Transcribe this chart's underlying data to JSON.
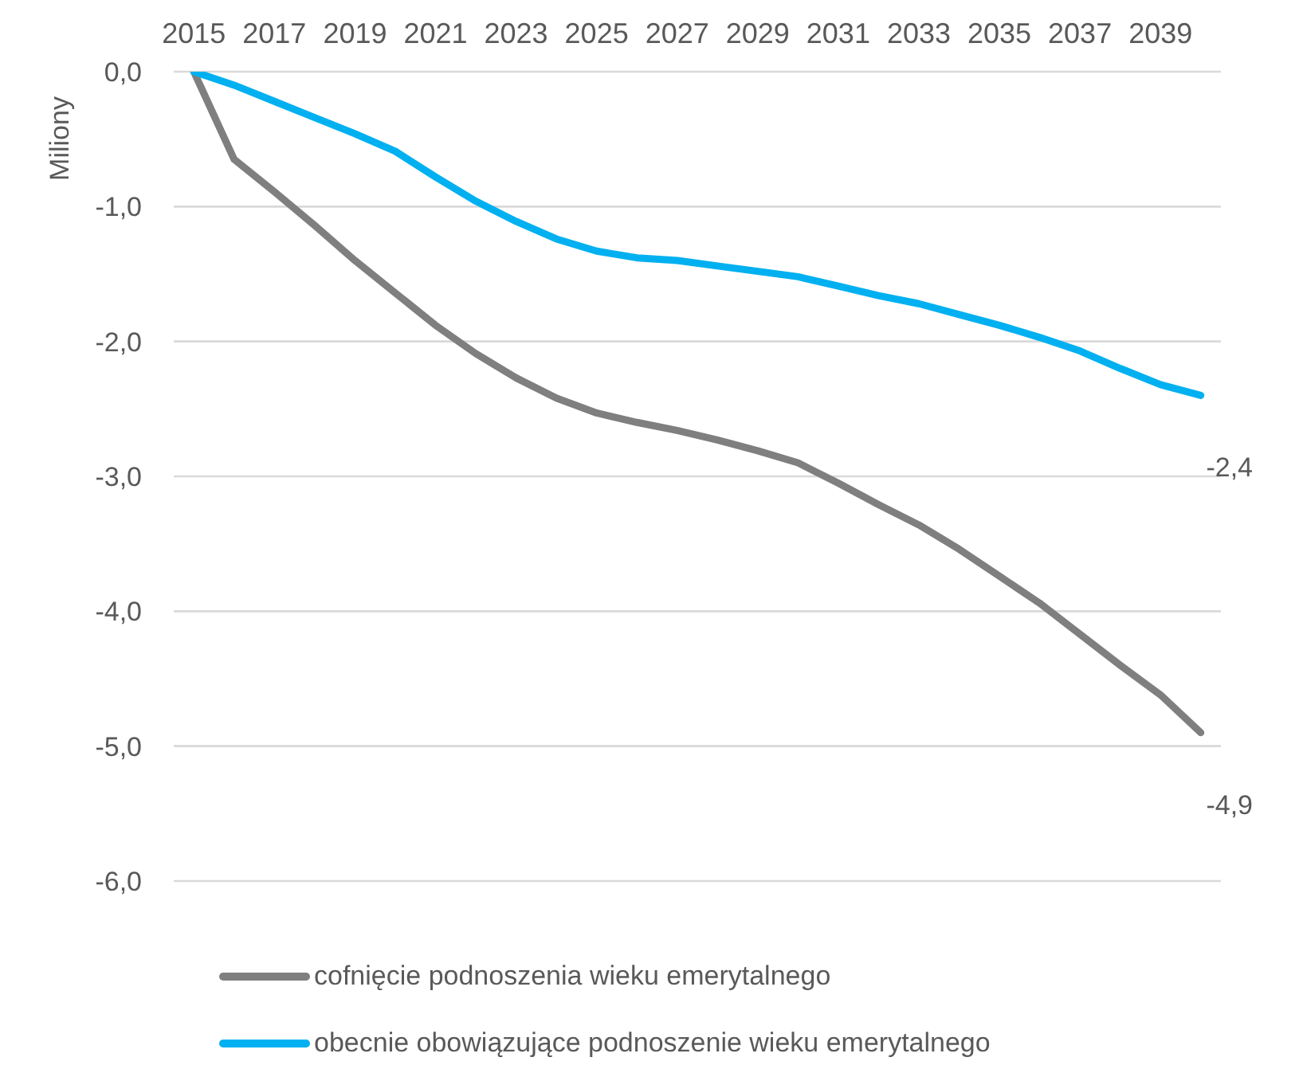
{
  "chart_data": {
    "type": "line",
    "ylabel": "Miliony",
    "categories": [
      "2015",
      null,
      "2017",
      null,
      "2019",
      null,
      "2021",
      null,
      "2023",
      null,
      "2025",
      null,
      "2027",
      null,
      "2029",
      null,
      "2031",
      null,
      "2033",
      null,
      "2035",
      null,
      "2037",
      null,
      "2039",
      null
    ],
    "series": [
      {
        "name": "cofnięcie podnoszenia wieku emerytalnego",
        "color": "#7f7f7f",
        "values": [
          0,
          -0.65,
          -0.89,
          -1.14,
          -1.4,
          -1.64,
          -1.88,
          -2.09,
          -2.27,
          -2.42,
          -2.53,
          -2.6,
          -2.66,
          -2.73,
          -2.81,
          -2.9,
          -3.05,
          -3.21,
          -3.36,
          -3.54,
          -3.74,
          -3.94,
          -4.17,
          -4.4,
          -4.62,
          -4.9
        ],
        "value_labels": [
          null,
          null,
          null,
          null,
          null,
          null,
          null,
          null,
          null,
          null,
          null,
          null,
          null,
          null,
          null,
          null,
          null,
          null,
          null,
          null,
          null,
          null,
          null,
          null,
          null,
          "-4,9"
        ]
      },
      {
        "name": "obecnie obowiązujące podnoszenie wieku emerytalnego",
        "color": "#00b0f0",
        "values": [
          0,
          -0.1,
          -0.22,
          -0.34,
          -0.46,
          -0.59,
          -0.78,
          -0.96,
          -1.11,
          -1.24,
          -1.33,
          -1.38,
          -1.4,
          -1.44,
          -1.48,
          -1.52,
          -1.59,
          -1.66,
          -1.72,
          -1.8,
          -1.88,
          -1.97,
          -2.07,
          -2.2,
          -2.32,
          -2.4
        ],
        "value_labels": [
          null,
          null,
          null,
          null,
          null,
          null,
          null,
          null,
          null,
          null,
          null,
          null,
          null,
          null,
          null,
          null,
          null,
          null,
          null,
          null,
          null,
          null,
          null,
          null,
          null,
          "-2,4"
        ]
      }
    ],
    "ylim": [
      -6,
      0
    ],
    "yticks": [
      {
        "value": 0,
        "label": "0,0"
      },
      {
        "value": -1,
        "label": "-1,0"
      },
      {
        "value": -2,
        "label": "-2,0"
      },
      {
        "value": -3,
        "label": "-3,0"
      },
      {
        "value": -4,
        "label": "-4,0"
      },
      {
        "value": -5,
        "label": "-5,0"
      },
      {
        "value": -6,
        "label": "-6,0"
      }
    ],
    "grid": "y",
    "legend": "bottom"
  }
}
